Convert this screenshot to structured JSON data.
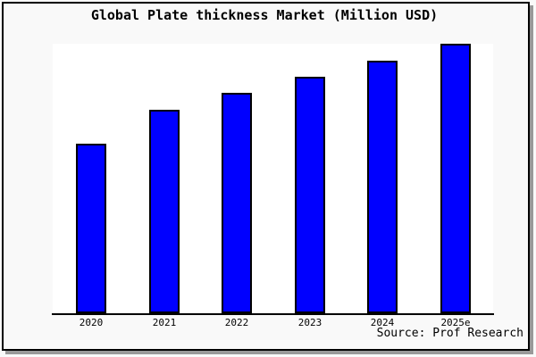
{
  "title": "Global Plate thickness Market (Million USD)",
  "source_note": "Source: Prof Research",
  "colors": {
    "bar_fill": "#0000ff",
    "bar_border": "#000000",
    "plot_background": "#ffffff",
    "page_background": "#f9f9f9",
    "frame_border": "#000000",
    "frame_shadow": "#999999",
    "text": "#000000"
  },
  "chart_data": {
    "type": "bar",
    "title": "Global Plate thickness Market (Million USD)",
    "categories": [
      "2020",
      "2021",
      "2022",
      "2023",
      "2024",
      "2025e"
    ],
    "values": [
      62.9,
      75.5,
      81.8,
      87.7,
      93.7,
      100
    ],
    "values_unit": "relative (tallest bar = 100); no numeric y-axis labels shown",
    "xlabel": "",
    "ylabel": "",
    "ylim": [
      0,
      100
    ],
    "y_axis_visible": false,
    "grid": false,
    "legend": "none",
    "bar_color": "#0000ff",
    "bar_border_color": "#000000",
    "source_note": "Source: Prof Research"
  }
}
